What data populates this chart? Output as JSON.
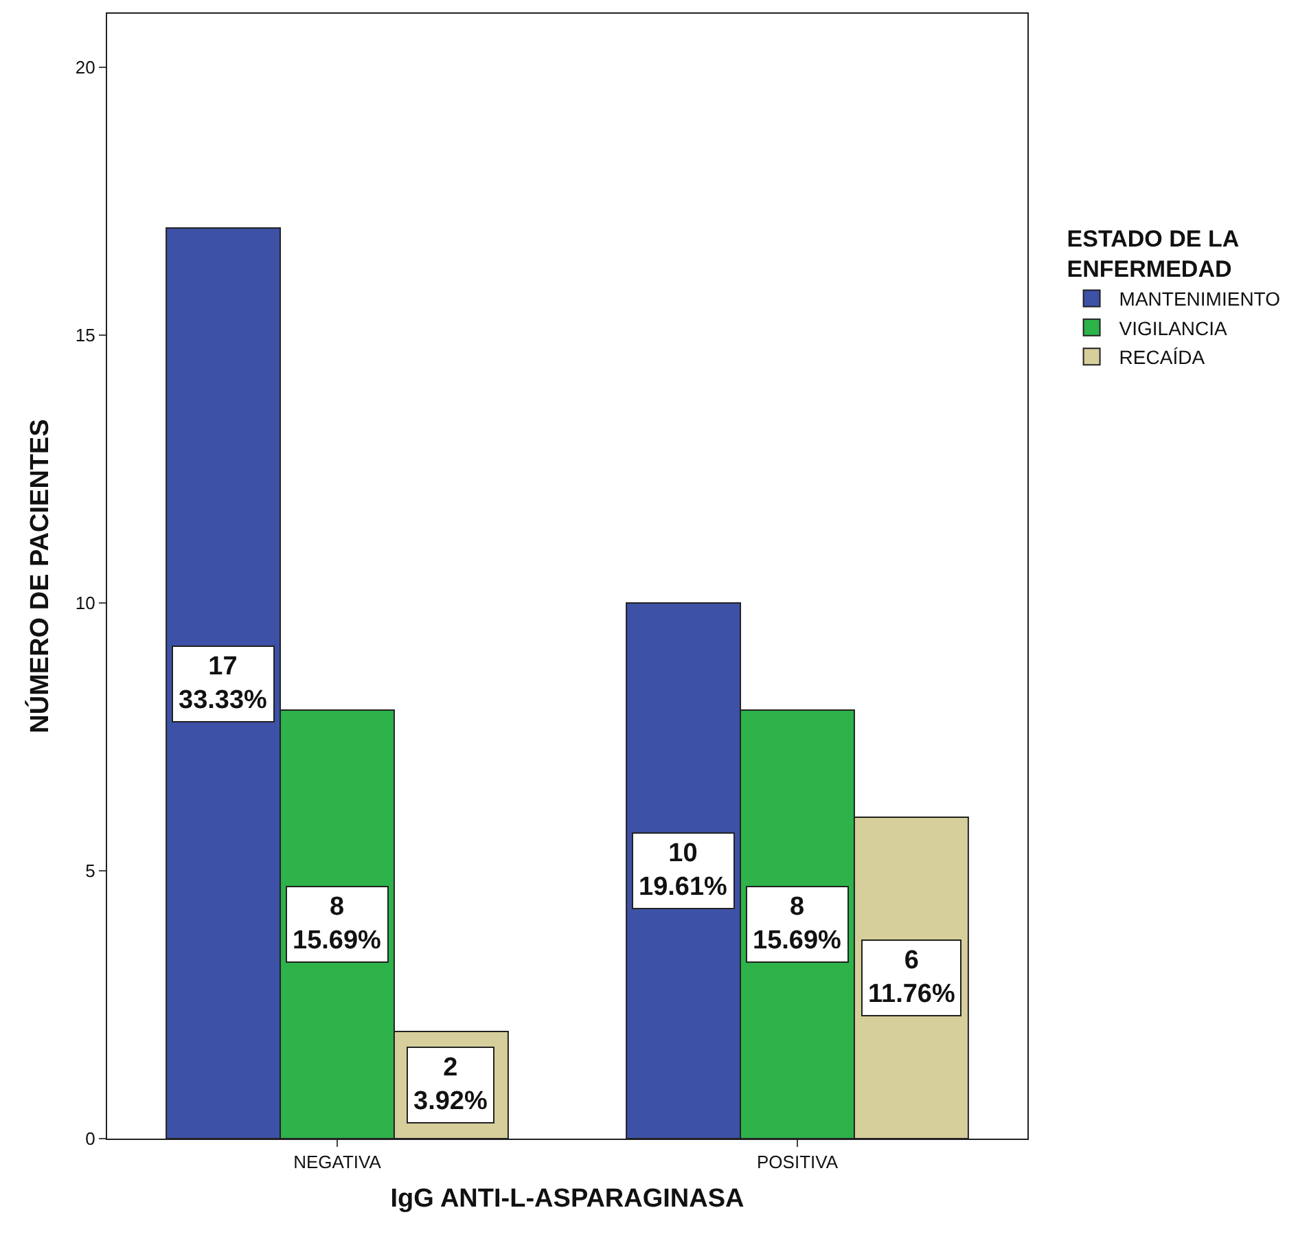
{
  "chart_data": {
    "type": "bar",
    "xlabel": "IgG ANTI-L-ASPARAGINASA",
    "ylabel": "NÚMERO DE PACIENTES",
    "legend_title": "ESTADO DE LA ENFERMEDAD",
    "categories": [
      "NEGATIVA",
      "POSITIVA"
    ],
    "series": [
      {
        "name": "MANTENIMIENTO",
        "color": "#3d51a6",
        "values": [
          17,
          10
        ],
        "value_labels": [
          "17\n33.33%",
          "10\n19.61%"
        ]
      },
      {
        "name": "VIGILANCIA",
        "color": "#2db34a",
        "values": [
          8,
          8
        ],
        "value_labels": [
          "8\n15.69%",
          "8\n15.69%"
        ]
      },
      {
        "name": "RECAÍDA",
        "color": "#d6cf9b",
        "values": [
          2,
          6
        ],
        "value_labels": [
          "2\n3.92%",
          "6\n11.76%"
        ]
      }
    ],
    "ylim": [
      0,
      21
    ],
    "yticks": [
      0,
      5,
      10,
      15,
      20
    ],
    "grid": false,
    "legend": "right"
  }
}
